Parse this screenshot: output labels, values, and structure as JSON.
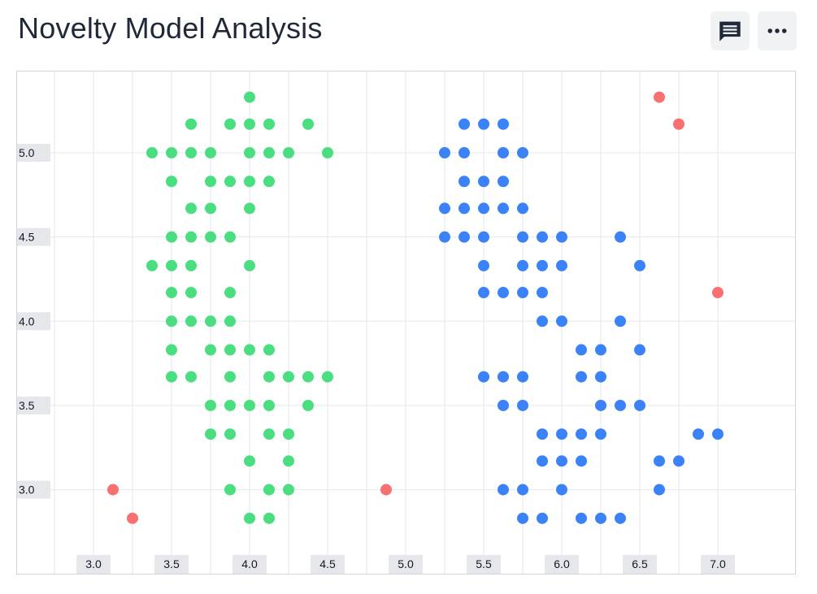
{
  "header": {
    "title": "Novelty Model Analysis",
    "comment_icon": "comment-icon",
    "more_icon": "more-horizontal-icon"
  },
  "colors": {
    "inlier_green": "#4ade80",
    "inlier_blue": "#3b82f6",
    "outlier_red": "#f87171",
    "grid": "#e5e7eb",
    "tick_bg": "#e5e7eb"
  },
  "chart_data": {
    "type": "scatter",
    "title": "Novelty Model Analysis",
    "xlabel": "",
    "ylabel": "",
    "xlim": [
      2.5,
      7.5
    ],
    "ylim": [
      2.5,
      5.5
    ],
    "grid": true,
    "x_ticks": [
      "3.0",
      "3.5",
      "4.0",
      "4.5",
      "5.0",
      "5.5",
      "6.0",
      "6.5",
      "7.0"
    ],
    "y_ticks": [
      "3.0",
      "3.5",
      "4.0",
      "4.5",
      "5.0"
    ],
    "series": [
      {
        "color": "#4ade80",
        "points": [
          [
            4.0,
            5.33
          ],
          [
            3.625,
            5.17
          ],
          [
            3.875,
            5.17
          ],
          [
            4.0,
            5.17
          ],
          [
            4.125,
            5.17
          ],
          [
            4.375,
            5.17
          ],
          [
            3.375,
            5.0
          ],
          [
            3.5,
            5.0
          ],
          [
            3.625,
            5.0
          ],
          [
            3.75,
            5.0
          ],
          [
            4.0,
            5.0
          ],
          [
            4.125,
            5.0
          ],
          [
            4.25,
            5.0
          ],
          [
            4.5,
            5.0
          ],
          [
            3.5,
            4.83
          ],
          [
            3.75,
            4.83
          ],
          [
            3.875,
            4.83
          ],
          [
            4.0,
            4.83
          ],
          [
            4.125,
            4.83
          ],
          [
            3.625,
            4.67
          ],
          [
            3.75,
            4.67
          ],
          [
            4.0,
            4.67
          ],
          [
            3.5,
            4.5
          ],
          [
            3.625,
            4.5
          ],
          [
            3.75,
            4.5
          ],
          [
            3.875,
            4.5
          ],
          [
            3.375,
            4.33
          ],
          [
            3.5,
            4.33
          ],
          [
            3.625,
            4.33
          ],
          [
            4.0,
            4.33
          ],
          [
            3.5,
            4.17
          ],
          [
            3.625,
            4.17
          ],
          [
            3.875,
            4.17
          ],
          [
            3.5,
            4.0
          ],
          [
            3.625,
            4.0
          ],
          [
            3.75,
            4.0
          ],
          [
            3.875,
            4.0
          ],
          [
            3.5,
            3.83
          ],
          [
            3.75,
            3.83
          ],
          [
            3.875,
            3.83
          ],
          [
            4.0,
            3.83
          ],
          [
            4.125,
            3.83
          ],
          [
            3.5,
            3.67
          ],
          [
            3.625,
            3.67
          ],
          [
            3.875,
            3.67
          ],
          [
            4.125,
            3.67
          ],
          [
            4.25,
            3.67
          ],
          [
            4.375,
            3.67
          ],
          [
            4.5,
            3.67
          ],
          [
            3.75,
            3.5
          ],
          [
            3.875,
            3.5
          ],
          [
            4.0,
            3.5
          ],
          [
            4.125,
            3.5
          ],
          [
            4.375,
            3.5
          ],
          [
            3.75,
            3.33
          ],
          [
            3.875,
            3.33
          ],
          [
            4.125,
            3.33
          ],
          [
            4.25,
            3.33
          ],
          [
            4.0,
            3.17
          ],
          [
            4.25,
            3.17
          ],
          [
            3.875,
            3.0
          ],
          [
            4.125,
            3.0
          ],
          [
            4.25,
            3.0
          ],
          [
            4.0,
            2.83
          ],
          [
            4.125,
            2.83
          ]
        ]
      },
      {
        "color": "#3b82f6",
        "points": [
          [
            5.375,
            5.17
          ],
          [
            5.5,
            5.17
          ],
          [
            5.625,
            5.17
          ],
          [
            5.25,
            5.0
          ],
          [
            5.375,
            5.0
          ],
          [
            5.625,
            5.0
          ],
          [
            5.75,
            5.0
          ],
          [
            5.375,
            4.83
          ],
          [
            5.5,
            4.83
          ],
          [
            5.625,
            4.83
          ],
          [
            5.25,
            4.67
          ],
          [
            5.375,
            4.67
          ],
          [
            5.5,
            4.67
          ],
          [
            5.625,
            4.67
          ],
          [
            5.75,
            4.67
          ],
          [
            5.25,
            4.5
          ],
          [
            5.375,
            4.5
          ],
          [
            5.5,
            4.5
          ],
          [
            5.75,
            4.5
          ],
          [
            5.875,
            4.5
          ],
          [
            6.0,
            4.5
          ],
          [
            6.375,
            4.5
          ],
          [
            5.5,
            4.33
          ],
          [
            5.75,
            4.33
          ],
          [
            5.875,
            4.33
          ],
          [
            6.0,
            4.33
          ],
          [
            6.5,
            4.33
          ],
          [
            5.5,
            4.17
          ],
          [
            5.625,
            4.17
          ],
          [
            5.75,
            4.17
          ],
          [
            5.875,
            4.17
          ],
          [
            5.875,
            4.0
          ],
          [
            6.0,
            4.0
          ],
          [
            6.375,
            4.0
          ],
          [
            6.125,
            3.83
          ],
          [
            6.25,
            3.83
          ],
          [
            6.5,
            3.83
          ],
          [
            5.5,
            3.67
          ],
          [
            5.625,
            3.67
          ],
          [
            5.75,
            3.67
          ],
          [
            6.125,
            3.67
          ],
          [
            6.25,
            3.67
          ],
          [
            5.625,
            3.5
          ],
          [
            5.75,
            3.5
          ],
          [
            6.25,
            3.5
          ],
          [
            6.375,
            3.5
          ],
          [
            6.5,
            3.5
          ],
          [
            5.875,
            3.33
          ],
          [
            6.0,
            3.33
          ],
          [
            6.125,
            3.33
          ],
          [
            6.25,
            3.33
          ],
          [
            6.875,
            3.33
          ],
          [
            7.0,
            3.33
          ],
          [
            5.875,
            3.17
          ],
          [
            6.0,
            3.17
          ],
          [
            6.125,
            3.17
          ],
          [
            6.625,
            3.17
          ],
          [
            6.75,
            3.17
          ],
          [
            5.625,
            3.0
          ],
          [
            5.75,
            3.0
          ],
          [
            6.0,
            3.0
          ],
          [
            6.625,
            3.0
          ],
          [
            5.75,
            2.83
          ],
          [
            5.875,
            2.83
          ],
          [
            6.125,
            2.83
          ],
          [
            6.25,
            2.83
          ],
          [
            6.375,
            2.83
          ]
        ]
      },
      {
        "color": "#f87171",
        "points": [
          [
            6.625,
            5.33
          ],
          [
            6.75,
            5.17
          ],
          [
            7.0,
            4.17
          ],
          [
            3.125,
            3.0
          ],
          [
            3.25,
            2.83
          ],
          [
            4.875,
            3.0
          ]
        ]
      }
    ]
  }
}
